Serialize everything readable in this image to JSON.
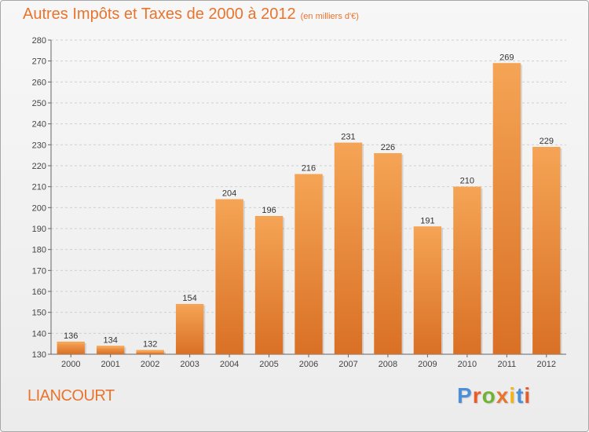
{
  "header": {
    "title": "Autres Impôts et Taxes de 2000 à 2012",
    "unit": "(en milliers d'€)"
  },
  "footer": {
    "commune": "LIANCOURT",
    "brand": "Proxiti"
  },
  "colors": {
    "title": "#e8742d",
    "bar_top": "#f5a455",
    "bar_bottom": "#d97025",
    "brand_letters": [
      "#4d8fd6",
      "#e85a27",
      "#6fb234",
      "#e8742d",
      "#f2b41e",
      "#4d8fd6",
      "#e85a27"
    ]
  },
  "chart_data": {
    "type": "bar",
    "title": "Autres Impôts et Taxes de 2000 à 2012",
    "subtitle": "(en milliers d'€)",
    "categories": [
      "2000",
      "2001",
      "2002",
      "2003",
      "2004",
      "2005",
      "2006",
      "2007",
      "2008",
      "2009",
      "2010",
      "2011",
      "2012"
    ],
    "values": [
      136,
      134,
      132,
      154,
      204,
      196,
      216,
      231,
      226,
      191,
      210,
      269,
      229
    ],
    "ylim": [
      130,
      280
    ],
    "yticks": [
      130,
      140,
      150,
      160,
      170,
      180,
      190,
      200,
      210,
      220,
      230,
      240,
      250,
      260,
      270,
      280
    ],
    "grid": true,
    "data_labels": true
  }
}
